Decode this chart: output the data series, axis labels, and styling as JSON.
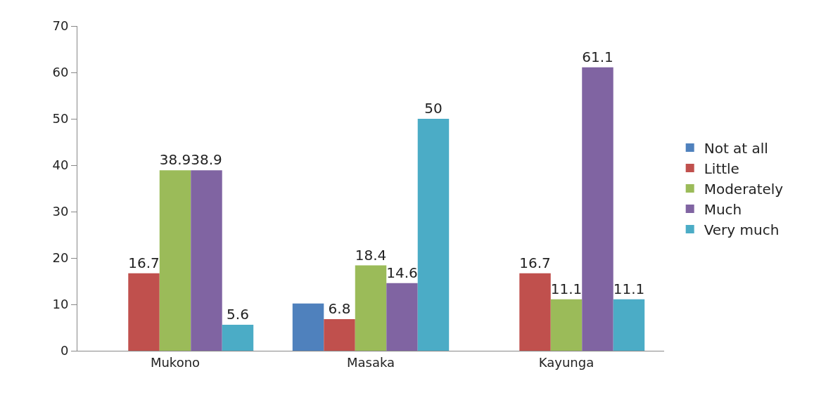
{
  "chart_data": {
    "type": "bar",
    "categories": [
      "Mukono",
      "Masaka",
      "Kayunga"
    ],
    "series": [
      {
        "name": "Not at all",
        "color": "#4f81bd",
        "values": [
          null,
          10.2,
          null
        ],
        "value_labels": [
          null,
          null,
          null
        ]
      },
      {
        "name": "Little",
        "color": "#c0504d",
        "values": [
          16.7,
          6.8,
          16.7
        ],
        "value_labels": [
          "16.7",
          "6.8",
          "16.7"
        ]
      },
      {
        "name": "Moderately",
        "color": "#9bbb59",
        "values": [
          38.9,
          18.4,
          11.1
        ],
        "value_labels": [
          "38.9",
          "18.4",
          "11.1"
        ]
      },
      {
        "name": "Much",
        "color": "#8064a2",
        "values": [
          38.9,
          14.6,
          61.1
        ],
        "value_labels": [
          "38.9",
          "14.6",
          "61.1"
        ]
      },
      {
        "name": "Very much",
        "color": "#4bacc6",
        "values": [
          5.6,
          50,
          11.1
        ],
        "value_labels": [
          "5.6",
          "50",
          "11.1"
        ]
      }
    ],
    "ylim": [
      0,
      70
    ],
    "yticks": [
      0,
      10,
      20,
      30,
      40,
      50,
      60,
      70
    ],
    "grid": false,
    "legend": "right"
  }
}
